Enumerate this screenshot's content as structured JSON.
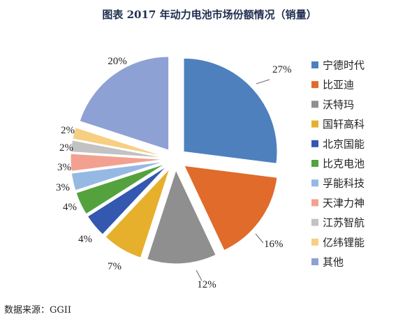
{
  "chart_data": {
    "type": "pie",
    "title": "图表 2017 年动力电池市场份额情况（销量）",
    "unit": "%",
    "slices": [
      {
        "label": "宁德时代",
        "value": 27,
        "display": "27%",
        "color": "#4e80bd"
      },
      {
        "label": "比亚迪",
        "value": 16,
        "display": "16%",
        "color": "#e06b2b"
      },
      {
        "label": "沃特玛",
        "value": 12,
        "display": "12%",
        "color": "#8f8f8f"
      },
      {
        "label": "国轩高科",
        "value": 7,
        "display": "7%",
        "color": "#e6b02c"
      },
      {
        "label": "北京国能",
        "value": 4,
        "display": "4%",
        "color": "#3458b0"
      },
      {
        "label": "比克电池",
        "value": 4,
        "display": "4%",
        "color": "#54a23e"
      },
      {
        "label": "孚能科技",
        "value": 3,
        "display": "3%",
        "color": "#96b9e3"
      },
      {
        "label": "天津力神",
        "value": 3,
        "display": "3%",
        "color": "#f2a191"
      },
      {
        "label": "江苏智航",
        "value": 2,
        "display": "2%",
        "color": "#c2c2c2"
      },
      {
        "label": "亿纬锂能",
        "value": 2,
        "display": "2%",
        "color": "#f7cf82"
      },
      {
        "label": "其他",
        "value": 20,
        "display": "20%",
        "color": "#8ea1d4"
      }
    ],
    "legend_position": "right"
  },
  "source": "数据来源：GGII"
}
